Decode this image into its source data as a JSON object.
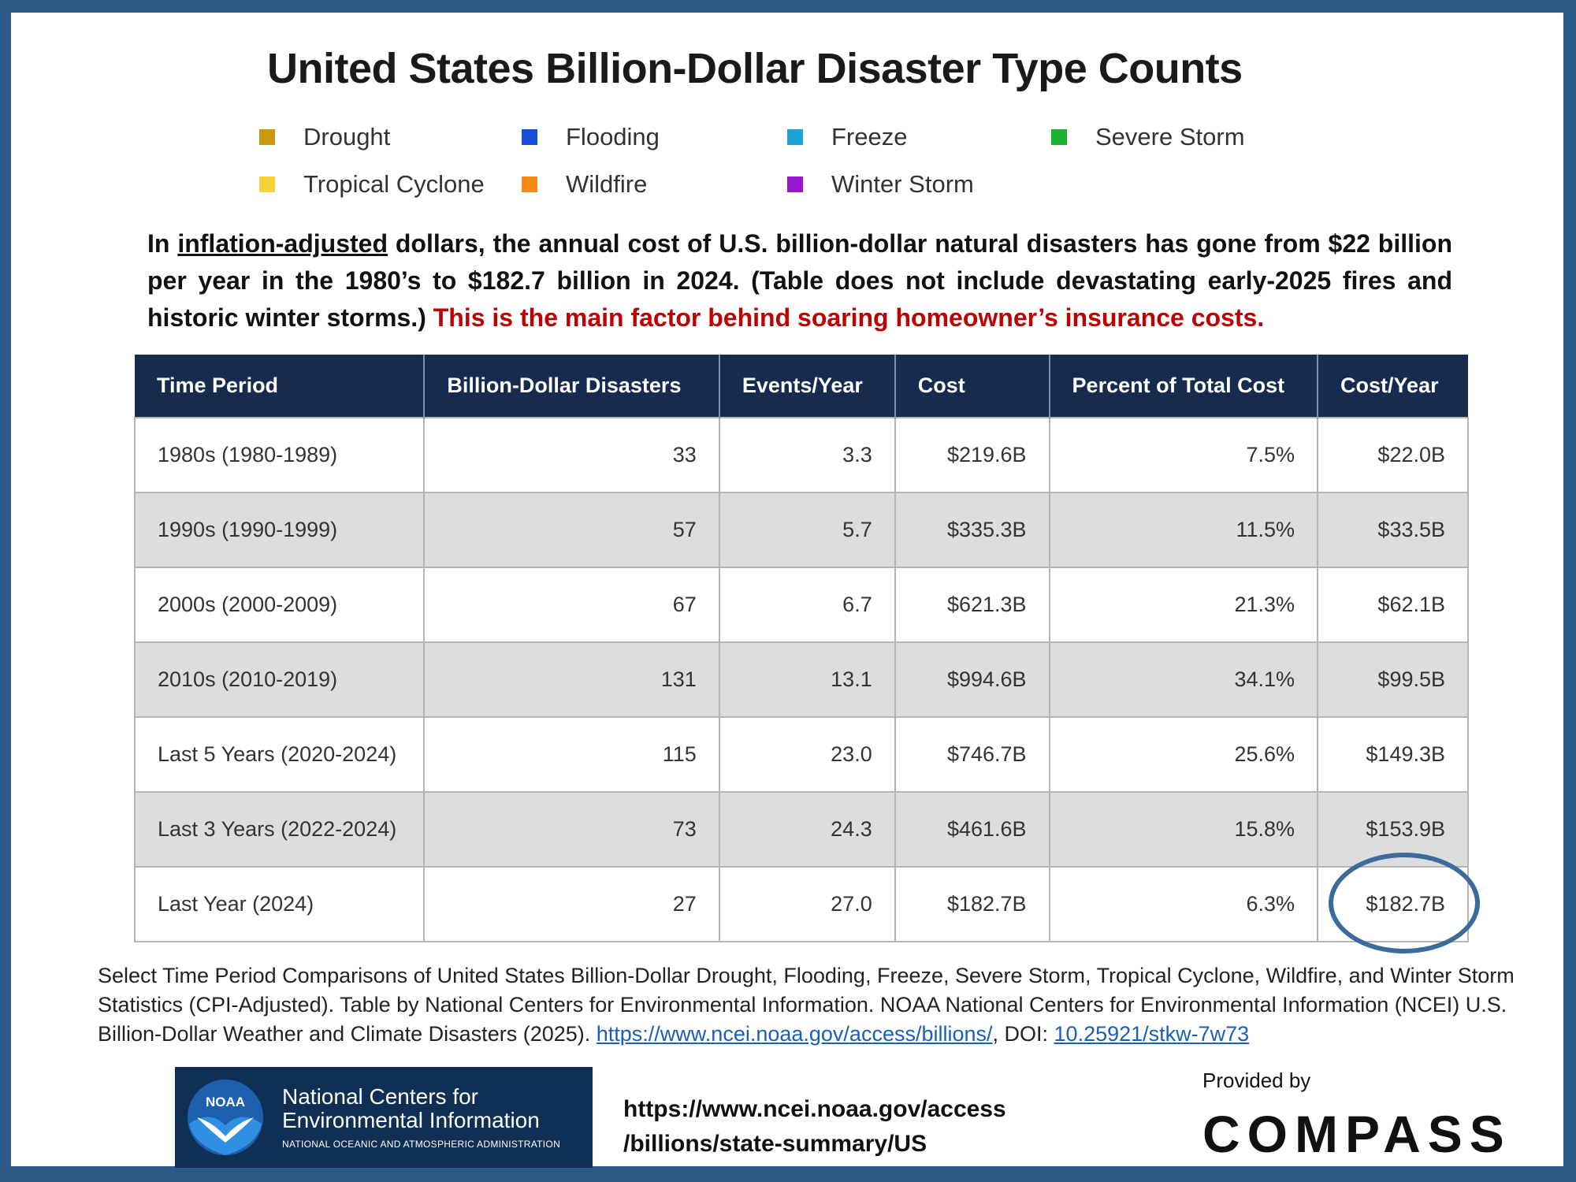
{
  "title": "United States Billion-Dollar Disaster Type Counts",
  "legend": [
    {
      "label": "Drought",
      "color": "#c79a0e"
    },
    {
      "label": "Flooding",
      "color": "#1a4fd6"
    },
    {
      "label": "Freeze",
      "color": "#1ea3d6"
    },
    {
      "label": "Severe Storm",
      "color": "#1fb030"
    },
    {
      "label": "Tropical Cyclone",
      "color": "#f5d13a"
    },
    {
      "label": "Wildfire",
      "color": "#f58a14"
    },
    {
      "label": "Winter Storm",
      "color": "#9a14d4"
    }
  ],
  "intro": {
    "part1": "In ",
    "underlined": "inflation-adjusted",
    "part2": " dollars, the annual cost of U.S. billion-dollar natural disasters has gone from $22 billion per year in the 1980’s to $182.7 billion in 2024. (Table does not include devastating early-2025 fires and historic winter storms.) ",
    "highlight": "This is the main factor behind soaring homeowner’s insurance costs."
  },
  "table": {
    "headers": [
      "Time Period",
      "Billion-Dollar Disasters",
      "Events/Year",
      "Cost",
      "Percent of Total Cost",
      "Cost/Year"
    ],
    "rows": [
      [
        "1980s (1980-1989)",
        "33",
        "3.3",
        "$219.6B",
        "7.5%",
        "$22.0B"
      ],
      [
        "1990s (1990-1999)",
        "57",
        "5.7",
        "$335.3B",
        "11.5%",
        "$33.5B"
      ],
      [
        "2000s (2000-2009)",
        "67",
        "6.7",
        "$621.3B",
        "21.3%",
        "$62.1B"
      ],
      [
        "2010s (2010-2019)",
        "131",
        "13.1",
        "$994.6B",
        "34.1%",
        "$99.5B"
      ],
      [
        "Last 5 Years (2020-2024)",
        "115",
        "23.0",
        "$746.7B",
        "25.6%",
        "$149.3B"
      ],
      [
        "Last 3 Years (2022-2024)",
        "73",
        "24.3",
        "$461.6B",
        "15.8%",
        "$153.9B"
      ],
      [
        "Last Year (2024)",
        "27",
        "27.0",
        "$182.7B",
        "6.3%",
        "$182.7B"
      ]
    ]
  },
  "caption": {
    "text": "Select Time Period Comparisons of United States Billion-Dollar Drought, Flooding, Freeze, Severe Storm, Tropical Cyclone, Wildfire, and Winter Storm Statistics (CPI-Adjusted). Table by National Centers for Environmental Information. NOAA National Centers for Environmental Information (NCEI) U.S. Billion-Dollar Weather and Climate Disasters (2025). ",
    "link1": "https://www.ncei.noaa.gov/access/billions/",
    "sep": ", DOI: ",
    "link2": "10.25921/stkw-7w73"
  },
  "noaa": {
    "emblem_text": "NOAA",
    "line1": "National Centers for",
    "line2": "Environmental Information",
    "line3": "NATIONAL OCEANIC AND ATMOSPHERIC ADMINISTRATION"
  },
  "ncei_url": "https://www.ncei.noaa.gov/access\n/billions/state-summary/US",
  "provided_by": "Provided by",
  "compass": "COMPASS"
}
